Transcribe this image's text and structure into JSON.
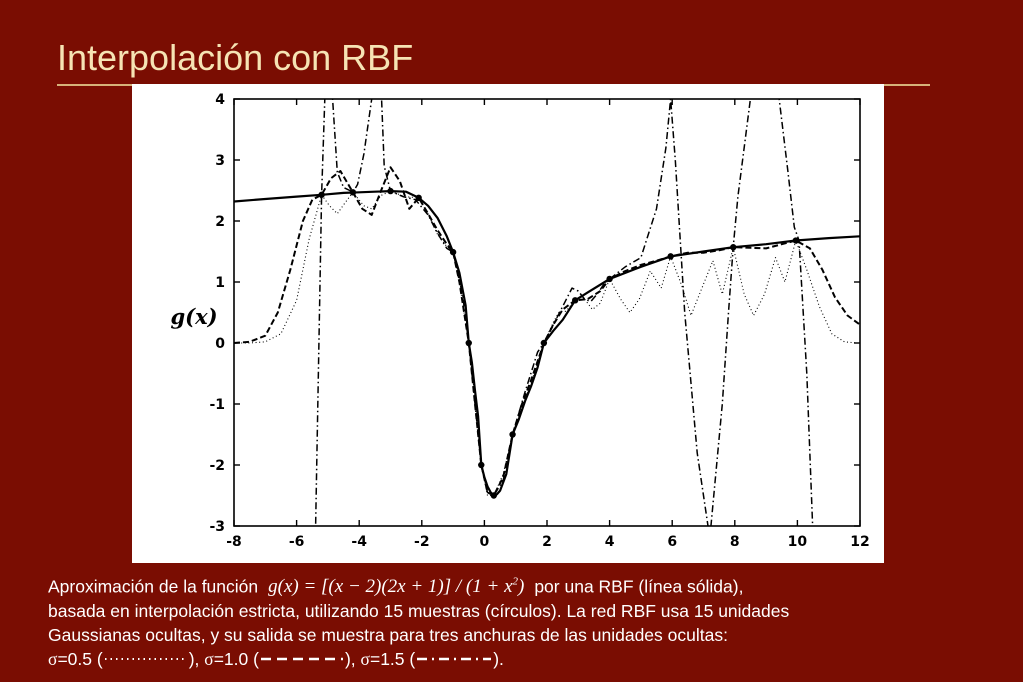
{
  "slide": {
    "title": "Interpolación con RBF"
  },
  "caption": {
    "line1_pre": "Aproximación de la función",
    "formula": "g(x) = [(x − 2)(2x + 1)] / (1 + x",
    "formula_exp": "2",
    "formula_close": ")",
    "line1_post": "por una RBF (línea sólida),",
    "line2": "basada en interpolación estricta, utilizando 15 muestras (círculos). La red RBF usa 15 unidades",
    "line3": "Gaussianas ocultas, y su salida se muestra para tres anchuras de las unidades ocultas:",
    "sigma_symbol": "σ",
    "sigma1": "=0.5 (",
    "sigma1_close": "),",
    "sigma2": "=1.0 (",
    "sigma2_close": "),",
    "sigma3": "=1.5 (",
    "sigma3_close": ")."
  },
  "chart_data": {
    "type": "line",
    "title": "",
    "xlabel": "",
    "ylabel": "g(x)",
    "xlim": [
      -8,
      12
    ],
    "ylim": [
      -3,
      4
    ],
    "xticks": [
      -8,
      -6,
      -4,
      -2,
      0,
      2,
      4,
      6,
      8,
      10,
      12
    ],
    "yticks": [
      -3,
      -2,
      -1,
      0,
      1,
      2,
      3,
      4
    ],
    "grid": false,
    "samples": {
      "x": [
        -5.2,
        -4.2,
        -3,
        -2.1,
        -1,
        -0.5,
        -0.1,
        0.3,
        0.9,
        1.9,
        2.9,
        4.0,
        5.95,
        7.95,
        9.95
      ],
      "y": [
        2.43,
        2.47,
        2.49,
        2.38,
        1.49,
        0.0,
        -2.0,
        -2.5,
        -1.5,
        0.0,
        0.7,
        1.05,
        1.42,
        1.57,
        1.68
      ]
    },
    "series": [
      {
        "style": "solid",
        "x": [
          -8,
          -7,
          -6,
          -5.2,
          -4.5,
          -4.0,
          -3.5,
          -3.0,
          -2.5,
          -2.1,
          -1.8,
          -1.5,
          -1.2,
          -1.0,
          -0.8,
          -0.6,
          -0.5,
          -0.4,
          -0.3,
          -0.2,
          -0.1,
          0.0,
          0.1,
          0.2,
          0.3,
          0.4,
          0.5,
          0.7,
          0.9,
          1.1,
          1.3,
          1.5,
          1.7,
          1.9,
          2.2,
          2.5,
          2.9,
          3.3,
          4.0,
          5.0,
          5.95,
          7.0,
          7.95,
          9.0,
          9.95,
          11.0,
          12.0
        ],
        "y": [
          2.32,
          2.36,
          2.4,
          2.43,
          2.46,
          2.47,
          2.48,
          2.49,
          2.48,
          2.38,
          2.25,
          2.05,
          1.75,
          1.49,
          1.15,
          0.62,
          0.0,
          -0.32,
          -0.78,
          -1.2,
          -2.0,
          -2.2,
          -2.35,
          -2.45,
          -2.5,
          -2.48,
          -2.42,
          -2.15,
          -1.5,
          -1.25,
          -0.95,
          -0.7,
          -0.4,
          0.0,
          0.2,
          0.38,
          0.7,
          0.83,
          1.05,
          1.25,
          1.42,
          1.5,
          1.57,
          1.62,
          1.68,
          1.72,
          1.75
        ]
      },
      {
        "name": "σ=0.5",
        "style": "dotted",
        "x": [
          -8.0,
          -7.5,
          -7.0,
          -6.5,
          -6.0,
          -5.6,
          -5.2,
          -4.95,
          -4.7,
          -4.45,
          -4.2,
          -3.85,
          -3.6,
          -3.3,
          -3.0,
          -2.55,
          -2.1,
          -1.8,
          -1.5,
          -1.2,
          -1.0,
          -0.8,
          -0.5,
          -0.3,
          -0.1,
          0.1,
          0.3,
          0.6,
          0.9,
          1.2,
          1.5,
          1.9,
          2.2,
          2.4,
          2.6,
          2.9,
          3.2,
          3.45,
          3.7,
          4.0,
          4.35,
          4.65,
          4.95,
          5.3,
          5.65,
          5.95,
          6.3,
          6.6,
          6.95,
          7.3,
          7.6,
          7.95,
          8.3,
          8.6,
          8.95,
          9.3,
          9.6,
          9.95,
          10.3,
          10.7,
          11.1,
          11.5,
          11.9
        ],
        "y": [
          0.0,
          0.0,
          0.02,
          0.15,
          0.7,
          1.7,
          2.43,
          2.25,
          2.12,
          2.3,
          2.47,
          2.25,
          2.2,
          2.42,
          2.49,
          2.4,
          2.38,
          2.12,
          1.78,
          1.58,
          1.49,
          1.0,
          0.0,
          -0.9,
          -2.0,
          -2.5,
          -2.5,
          -2.15,
          -1.5,
          -1.05,
          -0.65,
          0.0,
          0.34,
          0.52,
          0.52,
          0.7,
          0.72,
          0.55,
          0.65,
          1.05,
          0.72,
          0.5,
          0.72,
          1.18,
          0.9,
          1.42,
          0.95,
          0.45,
          0.9,
          1.35,
          0.8,
          1.57,
          0.8,
          0.45,
          0.8,
          1.4,
          1.0,
          1.68,
          1.2,
          0.6,
          0.15,
          0.02,
          0.0
        ]
      },
      {
        "name": "σ=1.0",
        "style": "dashed",
        "x": [
          -8.0,
          -7.5,
          -7.0,
          -6.6,
          -6.2,
          -5.8,
          -5.5,
          -5.2,
          -4.9,
          -4.6,
          -4.2,
          -3.9,
          -3.6,
          -3.3,
          -3.0,
          -2.7,
          -2.4,
          -2.1,
          -1.8,
          -1.5,
          -1.2,
          -1.0,
          -0.8,
          -0.5,
          -0.3,
          -0.1,
          0.1,
          0.3,
          0.6,
          0.9,
          1.2,
          1.5,
          1.9,
          2.2,
          2.5,
          2.9,
          3.3,
          3.7,
          4.0,
          4.5,
          5.0,
          5.5,
          5.95,
          6.5,
          7.0,
          7.5,
          7.95,
          8.5,
          9.0,
          9.5,
          9.95,
          10.4,
          10.8,
          11.2,
          11.6,
          12.0
        ],
        "y": [
          0.0,
          0.02,
          0.12,
          0.5,
          1.2,
          2.0,
          2.35,
          2.43,
          2.7,
          2.82,
          2.47,
          2.2,
          2.1,
          2.5,
          2.88,
          2.65,
          2.2,
          2.38,
          2.12,
          1.85,
          1.62,
          1.49,
          1.0,
          0.0,
          -1.0,
          -2.0,
          -2.45,
          -2.5,
          -2.2,
          -1.5,
          -1.0,
          -0.6,
          0.0,
          0.3,
          0.55,
          0.7,
          0.72,
          0.85,
          1.05,
          1.18,
          1.28,
          1.35,
          1.42,
          1.48,
          1.48,
          1.52,
          1.57,
          1.56,
          1.55,
          1.62,
          1.68,
          1.55,
          1.2,
          0.75,
          0.45,
          0.3
        ]
      },
      {
        "name": "σ=1.5",
        "style": "dashdot",
        "x": [
          -5.4,
          -5.2,
          -5.1,
          -5.0,
          -4.85,
          -4.7,
          -4.5,
          -4.3,
          -4.2,
          -4.05,
          -3.85,
          -3.6,
          -3.4,
          -3.2,
          -3.0,
          -2.6,
          -2.2,
          -1.8,
          -1.5,
          -1.2,
          -1.0,
          -0.7,
          -0.5,
          -0.3,
          -0.1,
          0.1,
          0.3,
          0.6,
          0.9,
          1.3,
          1.7,
          1.9,
          2.2,
          2.5,
          2.8,
          3.0,
          3.2,
          3.4,
          3.6,
          3.8,
          4.0,
          4.5,
          5.0,
          5.5,
          5.8,
          5.95,
          6.1,
          6.4,
          6.8,
          7.2,
          7.6,
          7.8,
          7.95,
          8.1,
          8.5,
          8.9,
          9.3,
          9.7,
          9.9,
          10.05,
          10.3,
          10.5
        ],
        "y": [
          -3.2,
          2.43,
          4.0,
          5.0,
          4.0,
          2.8,
          2.55,
          2.5,
          2.47,
          2.6,
          3.1,
          4.0,
          5.5,
          2.9,
          2.49,
          2.4,
          2.35,
          2.1,
          1.8,
          1.55,
          1.49,
          0.8,
          0.0,
          -1.0,
          -2.0,
          -2.45,
          -2.5,
          -2.25,
          -1.5,
          -0.8,
          -0.15,
          0.0,
          0.3,
          0.6,
          0.9,
          0.85,
          0.72,
          0.68,
          0.8,
          0.95,
          1.05,
          1.25,
          1.4,
          2.2,
          3.2,
          4.0,
          3.0,
          0.5,
          -1.8,
          -3.2,
          -1.0,
          0.5,
          1.57,
          2.4,
          4.0,
          5.5,
          4.5,
          2.8,
          1.9,
          1.68,
          -0.5,
          -3.2
        ]
      }
    ]
  }
}
